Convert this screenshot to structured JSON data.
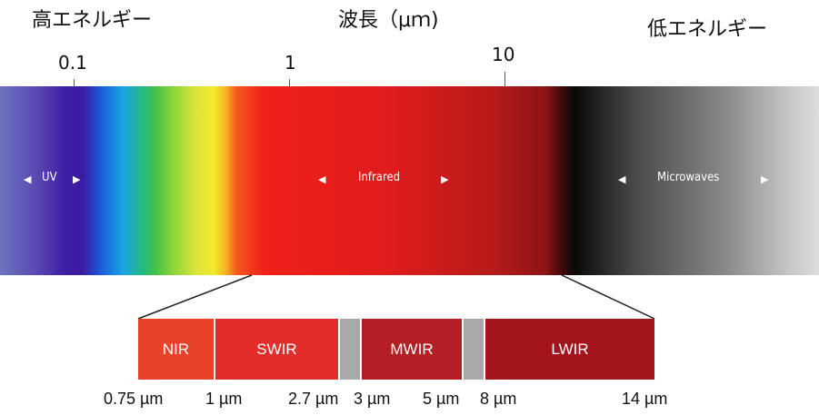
{
  "header": {
    "high_energy": "高エネルギー",
    "wavelength": "波長（μｍ)",
    "low_energy": "低エネルギー"
  },
  "scale_ticks": [
    "0.1",
    "1",
    "10"
  ],
  "spectrum": {
    "bands": [
      {
        "label": "UV"
      },
      {
        "label": "Infrared"
      },
      {
        "label": "Microwaves"
      }
    ],
    "arrow_left": "◀",
    "arrow_right": "▶"
  },
  "infrared_detail": {
    "segments": [
      {
        "label": "NIR",
        "color": "#e8432a"
      },
      {
        "label": "SWIR",
        "color": "#e22d2a"
      },
      {
        "label": "",
        "color": "#a8a8a8"
      },
      {
        "label": "MWIR",
        "color": "#b51f23"
      },
      {
        "label": "",
        "color": "#a8a8a8"
      },
      {
        "label": "LWIR",
        "color": "#a4151b"
      }
    ],
    "boundaries": [
      "0.75 µm",
      "1 µm",
      "2.7 µm",
      "3 µm",
      "5 µm",
      "8 µm",
      "14 µm"
    ]
  }
}
